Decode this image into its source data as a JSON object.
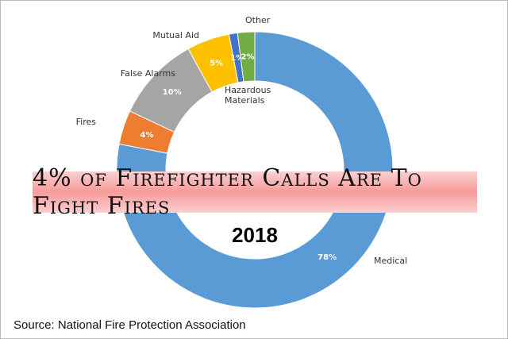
{
  "chart_data": {
    "type": "donut",
    "title": "4% of Firefighter Calls Are To Fight Fires",
    "subtitle": "2018",
    "source": "Source: National Fire Protection Association",
    "categories": [
      "Medical",
      "Fires",
      "False Alarms",
      "Mutual Aid",
      "Hazardous Materials",
      "Other"
    ],
    "values": [
      78,
      4,
      10,
      5,
      1,
      2
    ],
    "value_labels": [
      "78%",
      "4%",
      "10%",
      "5%",
      "1%",
      "2%"
    ],
    "colors": [
      "#5b9bd5",
      "#ed7d31",
      "#a5a5a5",
      "#ffc000",
      "#4472c4",
      "#70ad47"
    ]
  }
}
